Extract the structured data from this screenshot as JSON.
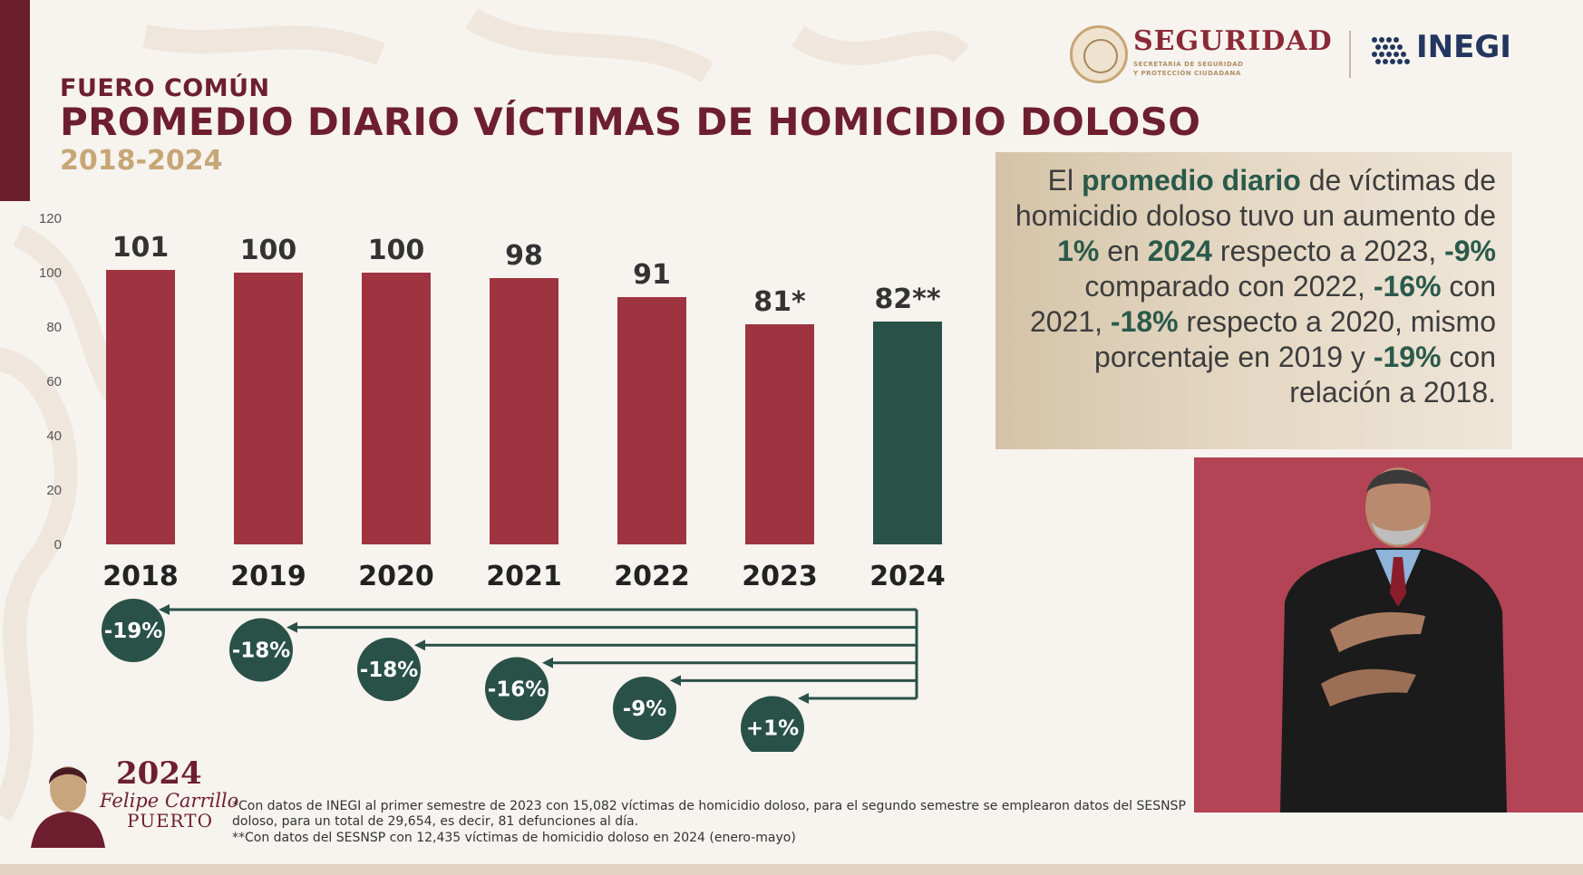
{
  "header": {
    "category": "FUERO COMÚN",
    "title": "PROMEDIO DIARIO VÍCTIMAS DE HOMICIDIO DOLOSO",
    "years": "2018-2024"
  },
  "logos": {
    "seguridad": "SEGURIDAD",
    "seguridad_sub1": "SECRETARÍA DE SEGURIDAD",
    "seguridad_sub2": "Y PROTECCIÓN CIUDADANA",
    "inegi": "INEGI"
  },
  "colors": {
    "title": "#6e1f2f",
    "years": "#c7a676",
    "bar": "#9f3441",
    "bar_highlight": "#2a5147",
    "badge": "#2a5147",
    "gold": "#c7a676"
  },
  "chart_data": {
    "type": "bar",
    "categories": [
      "2018",
      "2019",
      "2020",
      "2021",
      "2022",
      "2023",
      "2024"
    ],
    "values": [
      101,
      100,
      100,
      98,
      91,
      81,
      82
    ],
    "data_labels": [
      "101",
      "100",
      "100",
      "98",
      "91",
      "81*",
      "82**"
    ],
    "highlight_category": "2024",
    "ylim": [
      0,
      120
    ],
    "yticks": [
      0,
      20,
      40,
      60,
      80,
      100,
      120
    ],
    "comparisons": [
      {
        "target": "2018",
        "label": "-19%"
      },
      {
        "target": "2019",
        "label": "-18%"
      },
      {
        "target": "2020",
        "label": "-18%"
      },
      {
        "target": "2021",
        "label": "-16%"
      },
      {
        "target": "2022",
        "label": "-9%"
      },
      {
        "target": "2023",
        "label": "+1%"
      }
    ],
    "xlabel": "",
    "ylabel": "",
    "grid": false
  },
  "info_box": {
    "segments": [
      {
        "text": "El ",
        "bold": false
      },
      {
        "text": "promedio diario",
        "bold": true
      },
      {
        "text": " de víctimas de homicidio doloso tuvo un aumento de ",
        "bold": false
      },
      {
        "text": "1%",
        "bold": true
      },
      {
        "text": " en ",
        "bold": false
      },
      {
        "text": "2024",
        "bold": true
      },
      {
        "text": " respecto a 2023, ",
        "bold": false
      },
      {
        "text": "-9%",
        "bold": true
      },
      {
        "text": " comparado con 2022, ",
        "bold": false
      },
      {
        "text": "-16%",
        "bold": true
      },
      {
        "text": " con 2021, ",
        "bold": false
      },
      {
        "text": "-18%",
        "bold": true
      },
      {
        "text": " respecto a 2020, mismo porcentaje en 2019 y ",
        "bold": false
      },
      {
        "text": "-19%",
        "bold": true
      },
      {
        "text": " con relación a 2018.",
        "bold": false
      }
    ]
  },
  "footnotes": {
    "line1": "*Con datos de INEGI al primer semestre de 2023 con 15,082 víctimas de homicidio doloso, para el segundo semestre se emplearon datos del SESNSP",
    "line2": "doloso, para un total de 29,654, es decir, 81 defunciones al día.",
    "line3": "**Con datos del SESNSP con 12,435  víctimas de homicidio doloso en 2024 (enero-mayo)"
  },
  "emblem": {
    "year": "2024",
    "name_line1": "Felipe Carrillo",
    "name_line2": "PUERTO"
  }
}
